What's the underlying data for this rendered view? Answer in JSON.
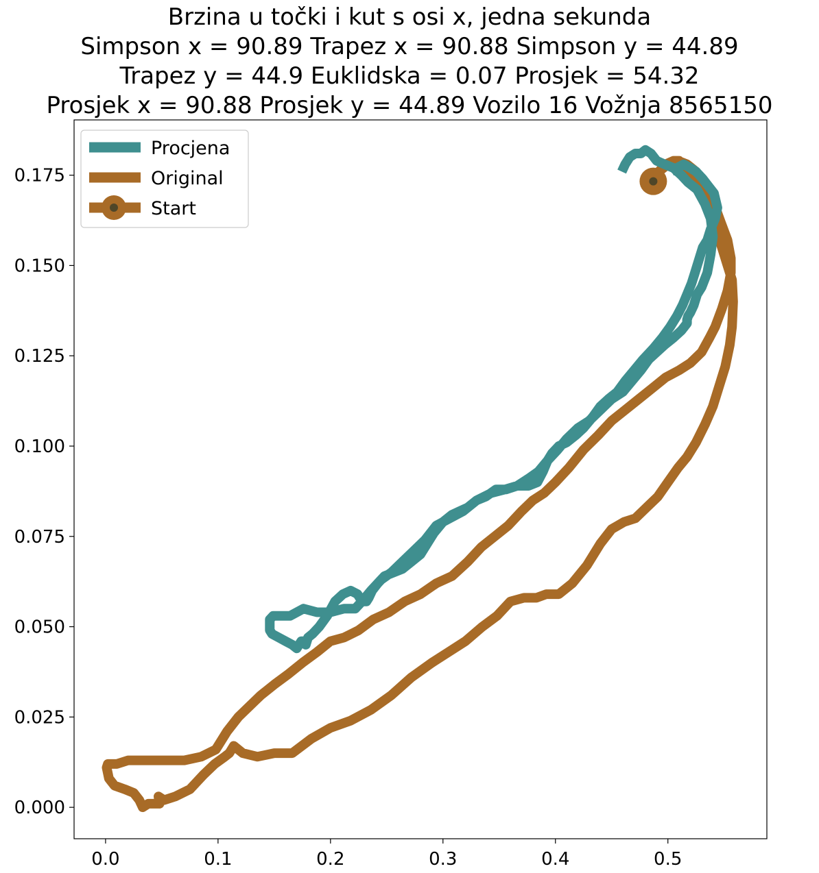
{
  "chart_data": {
    "type": "line",
    "title_lines": [
      "Brzina u točki i kut s osi x, jedna sekunda",
      "Simpson x = 90.89 Trapez x = 90.88 Simpson y = 44.89",
      "Trapez y = 44.9 Euklidska = 0.07 Prosjek = 54.32",
      "Prosjek x = 90.88 Prosjek y = 44.89 Vozilo 16 Vožnja 8565150"
    ],
    "xlabel": "",
    "ylabel": "",
    "xlim": [
      -0.028,
      0.588
    ],
    "ylim": [
      -0.0087,
      0.1903
    ],
    "x_ticks": [
      0.0,
      0.1,
      0.2,
      0.3,
      0.4,
      0.5
    ],
    "x_tick_labels": [
      "0.0",
      "0.1",
      "0.2",
      "0.3",
      "0.4",
      "0.5"
    ],
    "y_ticks": [
      0.0,
      0.025,
      0.05,
      0.075,
      0.1,
      0.125,
      0.15,
      0.175
    ],
    "y_tick_labels": [
      "0.000",
      "0.025",
      "0.050",
      "0.075",
      "0.100",
      "0.125",
      "0.150",
      "0.175"
    ],
    "grid": false,
    "legend_position": "top-left",
    "series": [
      {
        "name": "Procjena",
        "color": "#3f8f8f",
        "x": [
          0.459,
          0.462,
          0.466,
          0.471,
          0.476,
          0.48,
          0.485,
          0.49,
          0.497,
          0.505,
          0.512,
          0.518,
          0.526,
          0.533,
          0.538,
          0.54,
          0.538,
          0.535,
          0.53,
          0.526,
          0.523,
          0.52,
          0.518,
          0.517,
          0.517,
          0.512,
          0.505,
          0.497,
          0.49,
          0.483,
          0.476,
          0.468,
          0.46,
          0.45,
          0.44,
          0.43,
          0.42,
          0.41,
          0.402,
          0.393,
          0.385,
          0.376,
          0.366,
          0.355,
          0.343,
          0.33,
          0.318,
          0.306,
          0.294,
          0.284,
          0.274,
          0.264,
          0.254,
          0.245,
          0.236,
          0.228,
          0.222,
          0.212,
          0.2,
          0.188,
          0.176,
          0.164,
          0.156,
          0.149,
          0.146,
          0.146,
          0.148,
          0.154,
          0.16,
          0.166,
          0.17,
          0.172,
          0.174,
          0.176,
          0.178,
          0.18,
          0.184,
          0.19,
          0.197,
          0.204,
          0.211,
          0.218,
          0.224,
          0.228,
          0.23,
          0.232,
          0.234,
          0.237,
          0.242,
          0.248,
          0.256,
          0.264,
          0.272,
          0.28,
          0.286,
          0.292,
          0.3,
          0.308,
          0.315,
          0.322,
          0.33,
          0.338,
          0.347,
          0.356,
          0.366,
          0.376,
          0.384,
          0.389,
          0.393,
          0.397,
          0.403,
          0.41,
          0.418,
          0.425,
          0.433,
          0.44,
          0.447,
          0.455,
          0.462,
          0.47,
          0.478,
          0.487,
          0.495,
          0.502,
          0.508,
          0.513,
          0.517,
          0.521,
          0.524,
          0.528,
          0.531,
          0.535,
          0.538,
          0.542,
          0.544,
          0.541,
          0.536,
          0.531,
          0.525,
          0.52,
          0.514,
          0.508,
          0.503
        ],
        "y": [
          0.176,
          0.178,
          0.18,
          0.181,
          0.181,
          0.182,
          0.181,
          0.179,
          0.178,
          0.177,
          0.175,
          0.173,
          0.171,
          0.167,
          0.163,
          0.158,
          0.153,
          0.148,
          0.144,
          0.142,
          0.139,
          0.137,
          0.136,
          0.135,
          0.134,
          0.132,
          0.13,
          0.128,
          0.126,
          0.124,
          0.121,
          0.118,
          0.115,
          0.113,
          0.11,
          0.107,
          0.105,
          0.102,
          0.099,
          0.096,
          0.093,
          0.091,
          0.089,
          0.088,
          0.087,
          0.085,
          0.082,
          0.08,
          0.078,
          0.074,
          0.071,
          0.068,
          0.065,
          0.063,
          0.06,
          0.057,
          0.055,
          0.055,
          0.054,
          0.054,
          0.055,
          0.053,
          0.053,
          0.053,
          0.052,
          0.049,
          0.048,
          0.047,
          0.046,
          0.045,
          0.044,
          0.045,
          0.046,
          0.046,
          0.045,
          0.047,
          0.048,
          0.05,
          0.053,
          0.057,
          0.059,
          0.06,
          0.059,
          0.057,
          0.057,
          0.057,
          0.058,
          0.06,
          0.062,
          0.064,
          0.065,
          0.066,
          0.068,
          0.07,
          0.073,
          0.076,
          0.079,
          0.081,
          0.082,
          0.083,
          0.085,
          0.086,
          0.088,
          0.088,
          0.089,
          0.089,
          0.09,
          0.093,
          0.096,
          0.098,
          0.1,
          0.101,
          0.103,
          0.105,
          0.108,
          0.111,
          0.113,
          0.115,
          0.118,
          0.121,
          0.124,
          0.127,
          0.13,
          0.133,
          0.136,
          0.139,
          0.142,
          0.145,
          0.148,
          0.152,
          0.155,
          0.157,
          0.16,
          0.163,
          0.166,
          0.17,
          0.172,
          0.174,
          0.176,
          0.177,
          0.178,
          0.177,
          0.176
        ]
      },
      {
        "name": "Original",
        "color": "#a86b27",
        "x": [
          0.487,
          0.492,
          0.498,
          0.505,
          0.51,
          0.515,
          0.522,
          0.528,
          0.534,
          0.54,
          0.545,
          0.549,
          0.553,
          0.557,
          0.558,
          0.557,
          0.555,
          0.551,
          0.546,
          0.54,
          0.533,
          0.525,
          0.517,
          0.509,
          0.5,
          0.491,
          0.481,
          0.471,
          0.461,
          0.45,
          0.44,
          0.428,
          0.415,
          0.403,
          0.392,
          0.383,
          0.372,
          0.36,
          0.348,
          0.335,
          0.32,
          0.305,
          0.29,
          0.272,
          0.254,
          0.236,
          0.218,
          0.2,
          0.183,
          0.166,
          0.15,
          0.135,
          0.122,
          0.114,
          0.11,
          0.106,
          0.097,
          0.087,
          0.075,
          0.062,
          0.052,
          0.047,
          0.048,
          0.042,
          0.038,
          0.033,
          0.03,
          0.025,
          0.017,
          0.008,
          0.003,
          0.001,
          0.002,
          0.004,
          0.01,
          0.02,
          0.03,
          0.038,
          0.045,
          0.055,
          0.07,
          0.085,
          0.098,
          0.108,
          0.118,
          0.128,
          0.138,
          0.15,
          0.163,
          0.175,
          0.188,
          0.2,
          0.212,
          0.225,
          0.238,
          0.252,
          0.266,
          0.28,
          0.294,
          0.308,
          0.322,
          0.334,
          0.346,
          0.358,
          0.37,
          0.38,
          0.39,
          0.4,
          0.412,
          0.425,
          0.438,
          0.45,
          0.462,
          0.474,
          0.486,
          0.498,
          0.51,
          0.52,
          0.53,
          0.537,
          0.542,
          0.548,
          0.553,
          0.556,
          0.556,
          0.553,
          0.547,
          0.54,
          0.533,
          0.525,
          0.517,
          0.509,
          0.5,
          0.492,
          0.487
        ],
        "y": [
          0.173,
          0.176,
          0.178,
          0.179,
          0.179,
          0.177,
          0.175,
          0.172,
          0.168,
          0.163,
          0.158,
          0.154,
          0.15,
          0.146,
          0.14,
          0.133,
          0.128,
          0.122,
          0.117,
          0.111,
          0.106,
          0.101,
          0.097,
          0.094,
          0.09,
          0.086,
          0.083,
          0.08,
          0.079,
          0.077,
          0.073,
          0.067,
          0.062,
          0.059,
          0.059,
          0.058,
          0.058,
          0.057,
          0.053,
          0.05,
          0.046,
          0.043,
          0.04,
          0.036,
          0.031,
          0.027,
          0.024,
          0.022,
          0.019,
          0.015,
          0.015,
          0.014,
          0.015,
          0.017,
          0.015,
          0.014,
          0.012,
          0.009,
          0.005,
          0.003,
          0.002,
          0.003,
          0.001,
          0.001,
          0.001,
          0.0,
          0.002,
          0.004,
          0.005,
          0.006,
          0.008,
          0.011,
          0.012,
          0.012,
          0.012,
          0.013,
          0.013,
          0.013,
          0.013,
          0.013,
          0.013,
          0.014,
          0.016,
          0.021,
          0.025,
          0.028,
          0.031,
          0.034,
          0.037,
          0.04,
          0.043,
          0.046,
          0.047,
          0.049,
          0.052,
          0.054,
          0.057,
          0.059,
          0.062,
          0.064,
          0.068,
          0.072,
          0.075,
          0.078,
          0.082,
          0.085,
          0.087,
          0.09,
          0.094,
          0.099,
          0.103,
          0.107,
          0.11,
          0.113,
          0.116,
          0.119,
          0.121,
          0.123,
          0.126,
          0.13,
          0.133,
          0.138,
          0.143,
          0.148,
          0.152,
          0.157,
          0.162,
          0.168,
          0.172,
          0.176,
          0.178,
          0.179,
          0.178,
          0.176,
          0.173
        ]
      },
      {
        "name": "Start",
        "color": "#a86b27",
        "marker_face": "#4f4628",
        "x": [
          0.487
        ],
        "y": [
          0.1733
        ]
      }
    ]
  }
}
